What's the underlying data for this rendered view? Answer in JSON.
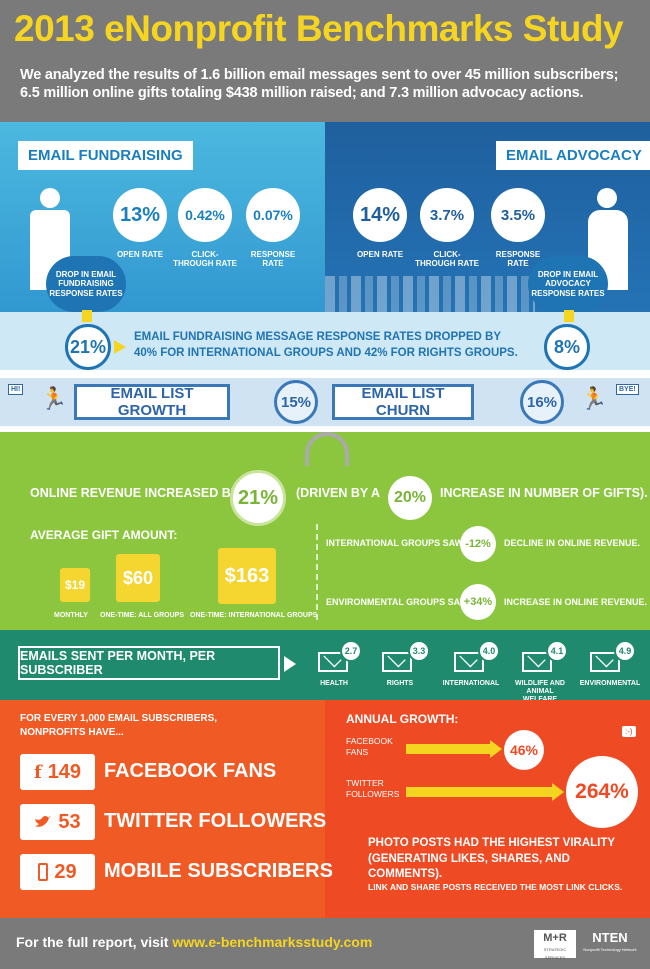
{
  "header": {
    "title": "2013 eNonprofit Benchmarks Study",
    "subtitle": "We analyzed the results of 1.6 billion email messages sent to over 45 million subscribers; 6.5 million online gifts totaling $438 million raised; and 7.3 million advocacy actions."
  },
  "fundraising": {
    "label": "EMAIL FUNDRAISING",
    "stats": [
      {
        "value": "13%",
        "caption": "OPEN RATE"
      },
      {
        "value": "0.42%",
        "caption": "CLICK-THROUGH RATE"
      },
      {
        "value": "0.07%",
        "caption": "RESPONSE RATE"
      }
    ],
    "drop_label": "DROP IN EMAIL FUNDRAISING RESPONSE RATES",
    "drop_value": "21%"
  },
  "advocacy": {
    "label": "EMAIL ADVOCACY",
    "stats": [
      {
        "value": "14%",
        "caption": "OPEN RATE"
      },
      {
        "value": "3.7%",
        "caption": "CLICK-THROUGH RATE"
      },
      {
        "value": "3.5%",
        "caption": "RESPONSE RATE"
      }
    ],
    "drop_label": "DROP IN EMAIL ADVOCACY RESPONSE RATES",
    "drop_value": "8%"
  },
  "drop_note": "EMAIL FUNDRAISING MESSAGE RESPONSE RATES DROPPED BY 40% FOR INTERNATIONAL GROUPS AND 42% FOR RIGHTS GROUPS.",
  "list": {
    "hi": "HI!",
    "growth_label": "EMAIL LIST GROWTH",
    "growth_value": "15%",
    "churn_label": "EMAIL LIST CHURN",
    "churn_value": "16%",
    "bye": "BYE!"
  },
  "revenue": {
    "prefix": "ONLINE REVENUE INCREASED BY",
    "value": "21%",
    "middle": "(DRIVEN BY A",
    "gifts_value": "20%",
    "suffix": "INCREASE IN NUMBER OF GIFTS).",
    "avg_label": "AVERAGE GIFT AMOUNT:",
    "gifts": [
      {
        "value": "$19",
        "caption": "MONTHLY"
      },
      {
        "value": "$60",
        "caption": "ONE-TIME: ALL GROUPS"
      },
      {
        "value": "$163",
        "caption": "ONE-TIME: INTERNATIONAL GROUPS"
      }
    ],
    "intl_prefix": "INTERNATIONAL GROUPS SAW A",
    "intl_value": "-12%",
    "intl_suffix": "DECLINE IN ONLINE REVENUE.",
    "env_prefix": "ENVIRONMENTAL GROUPS SAW A",
    "env_value": "+34%",
    "env_suffix": "INCREASE IN ONLINE REVENUE."
  },
  "monthly": {
    "label": "EMAILS SENT PER MONTH, PER SUBSCRIBER",
    "items": [
      {
        "value": "2.7",
        "caption": "HEALTH"
      },
      {
        "value": "3.3",
        "caption": "RIGHTS"
      },
      {
        "value": "4.0",
        "caption": "INTERNATIONAL"
      },
      {
        "value": "4.1",
        "caption": "WILDLIFE AND ANIMAL WELFARE"
      },
      {
        "value": "4.9",
        "caption": "ENVIRONMENTAL"
      }
    ]
  },
  "social": {
    "intro": "FOR EVERY 1,000 EMAIL SUBSCRIBERS, NONPROFITS HAVE...",
    "items": [
      {
        "icon": "f",
        "value": "149",
        "label": "FACEBOOK FANS"
      },
      {
        "icon": "twitter-bird",
        "value": "53",
        "label": "TWITTER FOLLOWERS"
      },
      {
        "icon": "mobile-phone",
        "value": "29",
        "label": "MOBILE SUBSCRIBERS"
      }
    ]
  },
  "growth": {
    "label": "ANNUAL GROWTH:",
    "facebook_label": "FACEBOOK FANS",
    "facebook_value": "46%",
    "twitter_label": "TWITTER FOLLOWERS",
    "twitter_value": "264%",
    "smiley": ":-)",
    "photo_note": "PHOTO POSTS HAD THE HIGHEST VIRALITY (GENERATING LIKES, SHARES, AND COMMENTS).",
    "link_note": "LINK AND SHARE POSTS RECEIVED THE MOST LINK CLICKS."
  },
  "footer": {
    "text": "For the full report, visit",
    "url": "www.e-benchmarksstudy.com",
    "logo1": "M+R",
    "logo1_sub": "STRATEGIC SERVICES",
    "logo2": "NTEN",
    "logo2_sub": "Nonprofit Technology Network"
  }
}
